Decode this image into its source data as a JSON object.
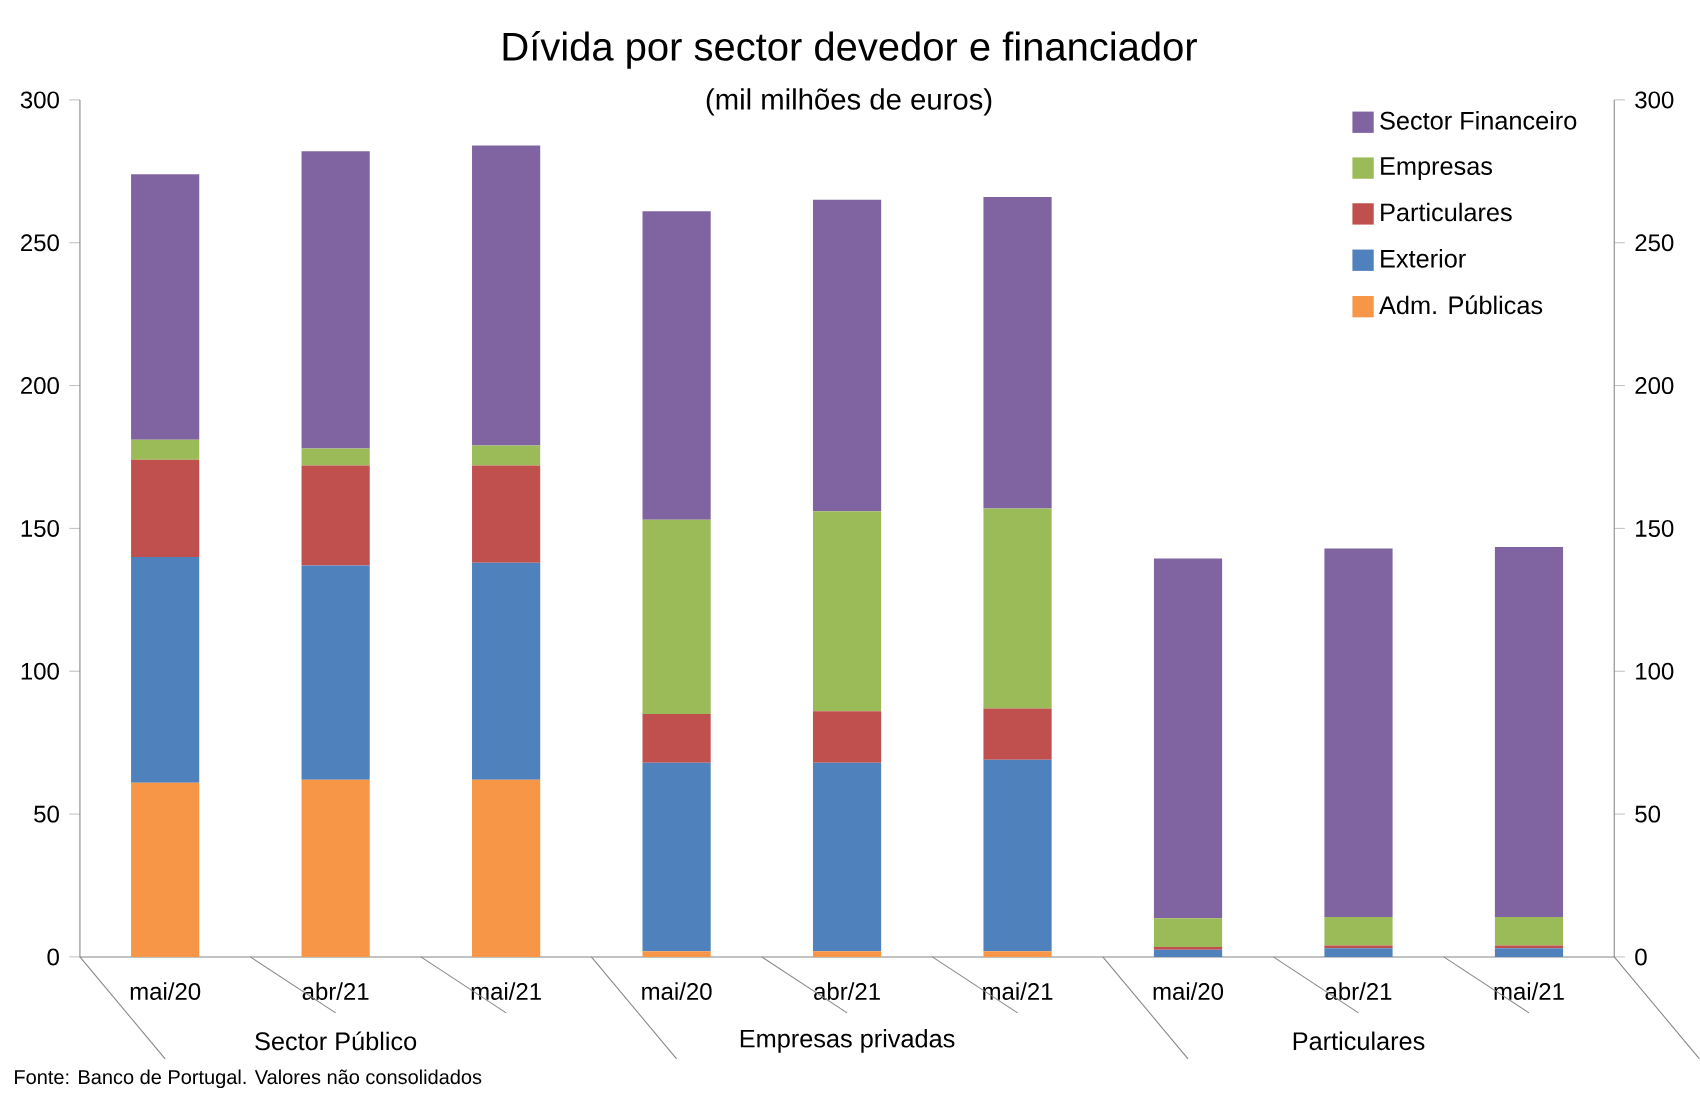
{
  "chart_data": {
    "type": "bar",
    "stacked": true,
    "title": "Dívida por sector devedor e financiador",
    "subtitle": "(mil milhões de euros)",
    "categories": [
      "mai/20",
      "abr/21",
      "mai/21",
      "mai/20",
      "abr/21",
      "mai/21",
      "mai/20",
      "abr/21",
      "mai/21"
    ],
    "series": [
      {
        "name": "Adm. Públicas",
        "color": "#f79646",
        "values": [
          61,
          62,
          62,
          2,
          2,
          2,
          0,
          0,
          0
        ]
      },
      {
        "name": "Exterior",
        "color": "#4f81bd",
        "values": [
          79,
          75,
          76,
          66,
          66,
          67,
          2.5,
          3,
          3
        ]
      },
      {
        "name": "Particulares",
        "color": "#c0504d",
        "values": [
          34,
          35,
          34,
          17,
          18,
          18,
          1,
          1,
          1
        ]
      },
      {
        "name": "Empresas",
        "color": "#9bbb59",
        "values": [
          7,
          6,
          7,
          68,
          70,
          70,
          10,
          10,
          10
        ]
      },
      {
        "name": "Sector Financeiro",
        "color": "#8064a2",
        "values": [
          93,
          104,
          105,
          108,
          109,
          109,
          126,
          129,
          129.5
        ]
      }
    ],
    "ylim": [
      0,
      300
    ],
    "yticks": [
      0,
      50,
      100,
      150,
      200,
      250,
      300
    ],
    "y2lim": [
      0,
      300
    ],
    "y2ticks": [
      0,
      50,
      100,
      150,
      200,
      250,
      300
    ],
    "legend": "top right",
    "annotations": [
      "Sector Público",
      "Empresas privadas",
      "Particulares",
      "Fonte: Banco de Portugal. Valores não consolidados"
    ]
  }
}
